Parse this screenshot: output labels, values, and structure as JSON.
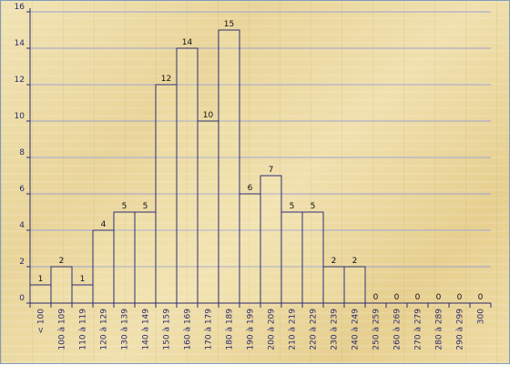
{
  "chart_data": {
    "type": "bar",
    "title": "",
    "xlabel": "",
    "ylabel": "",
    "categories": [
      "< 100",
      "100 à 109",
      "110 à 119",
      "120 à 129",
      "130 à 139",
      "140 à 149",
      "150 à 159",
      "160 à 169",
      "170 à 179",
      "180 à 189",
      "190 à 199",
      "200 à 209",
      "210 à 219",
      "220 à 229",
      "230 à 239",
      "240 à 249",
      "250 à 259",
      "260 à 269",
      "270 à 279",
      "280 à 289",
      "290 à 299",
      "300"
    ],
    "values": [
      1,
      2,
      1,
      4,
      5,
      5,
      12,
      14,
      10,
      15,
      6,
      7,
      5,
      5,
      2,
      2,
      0,
      0,
      0,
      0,
      0,
      0
    ],
    "ylim": [
      0,
      16
    ],
    "yticks": [
      0,
      2,
      4,
      6,
      8,
      10,
      12,
      14,
      16
    ],
    "grid": true,
    "colors": {
      "bar_stroke": "#2e2e7a",
      "grid": "#9fa3cf",
      "axis": "#2b2b6e"
    }
  }
}
